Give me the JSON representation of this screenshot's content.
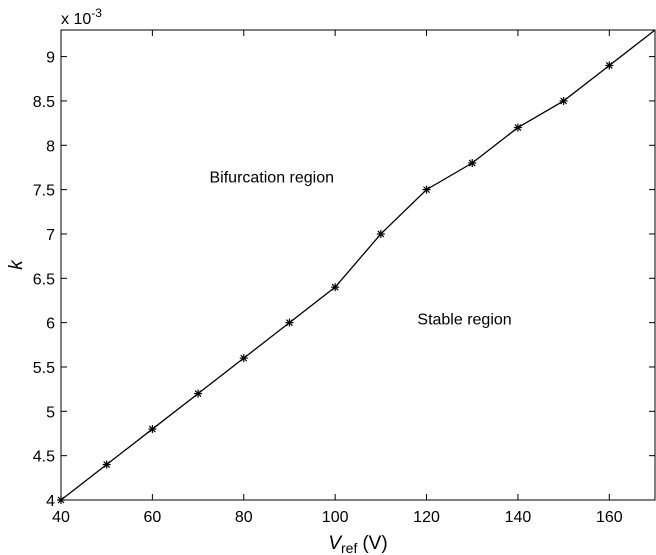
{
  "chart_data": {
    "type": "line",
    "x": [
      40,
      50,
      60,
      70,
      80,
      90,
      100,
      110,
      120,
      130,
      140,
      150,
      160,
      170
    ],
    "series": [
      {
        "values": [
          0.004,
          0.0044,
          0.0048,
          0.0052,
          0.0056,
          0.006,
          0.0064,
          0.007,
          0.0075,
          0.0078,
          0.0082,
          0.0085,
          0.0089,
          0.0093
        ],
        "marker": "asterisk",
        "marker_on_points": 13,
        "color": "#000000"
      }
    ],
    "title": "",
    "xlabel_main": "V",
    "xlabel_sub": "ref",
    "xlabel_unit": "(V)",
    "ylabel": "k",
    "y_exponent_label": "x 10",
    "y_exponent_power": "-3",
    "xlim": [
      40,
      170
    ],
    "ylim": [
      0.004,
      0.0093
    ],
    "xticks": [
      40,
      60,
      80,
      100,
      120,
      140,
      160
    ],
    "xtick_labels": [
      "40",
      "60",
      "80",
      "100",
      "120",
      "140",
      "160"
    ],
    "yticks": [
      0.004,
      0.0045,
      0.005,
      0.0055,
      0.006,
      0.0065,
      0.007,
      0.0075,
      0.008,
      0.0085,
      0.009
    ],
    "ytick_labels": [
      "4",
      "4.5",
      "5",
      "5.5",
      "6",
      "6.5",
      "7",
      "7.5",
      "8",
      "8.5",
      "9"
    ],
    "grid": false,
    "annotations": [
      {
        "text": "Bifurcation region",
        "x": 72.5,
        "y": 0.00758
      },
      {
        "text": "Stable region",
        "x": 118,
        "y": 0.00598
      }
    ]
  }
}
